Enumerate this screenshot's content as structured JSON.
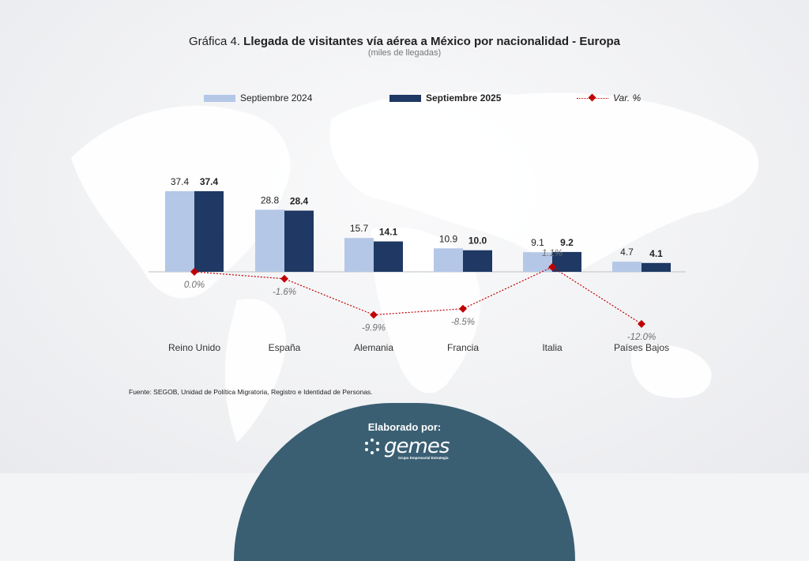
{
  "header": {
    "title_prefix": "Gráfica 4.",
    "title_main": "Llegada de visitantes vía aérea a México por nacionalidad - Europa",
    "subtitle": "(miles de llegadas)"
  },
  "legend": {
    "series_a": "Septiembre 2024",
    "series_b": "Septiembre 2025",
    "var": "Var. %"
  },
  "colors": {
    "series_a": "#b4c7e7",
    "series_b": "#1f3864",
    "var": "#c00000",
    "footer": "#3a5f73"
  },
  "chart_data": {
    "type": "bar",
    "categories": [
      "Reino Unido",
      "España",
      "Alemania",
      "Francia",
      "Italia",
      "Países Bajos"
    ],
    "series": [
      {
        "name": "Septiembre 2024",
        "values": [
          37.4,
          28.8,
          15.7,
          10.9,
          9.1,
          4.7
        ],
        "labels": [
          "37.4",
          "28.8",
          "15.7",
          "10.9",
          "9.1",
          "4.7"
        ]
      },
      {
        "name": "Septiembre 2025",
        "values": [
          37.4,
          28.4,
          14.1,
          10.0,
          9.2,
          4.1
        ],
        "labels": [
          "37.4",
          "28.4",
          "14.1",
          "10.0",
          "9.2",
          "4.1"
        ]
      }
    ],
    "variation": {
      "name": "Var. %",
      "type": "line",
      "values": [
        0.0,
        -1.6,
        -9.9,
        -8.5,
        1.1,
        -12.0
      ],
      "labels": [
        "0.0%",
        "-1.6%",
        "-9.9%",
        "-8.5%",
        "1.1%",
        "-12.0%"
      ]
    }
  },
  "source": "Fuente: SEGOB, Unidad de Política Migratoria, Registro e Identidad de Personas.",
  "footer": {
    "label": "Elaborado por:",
    "logo": "gemes",
    "logo_tag": "Grupo Empresarial Estrategia"
  }
}
